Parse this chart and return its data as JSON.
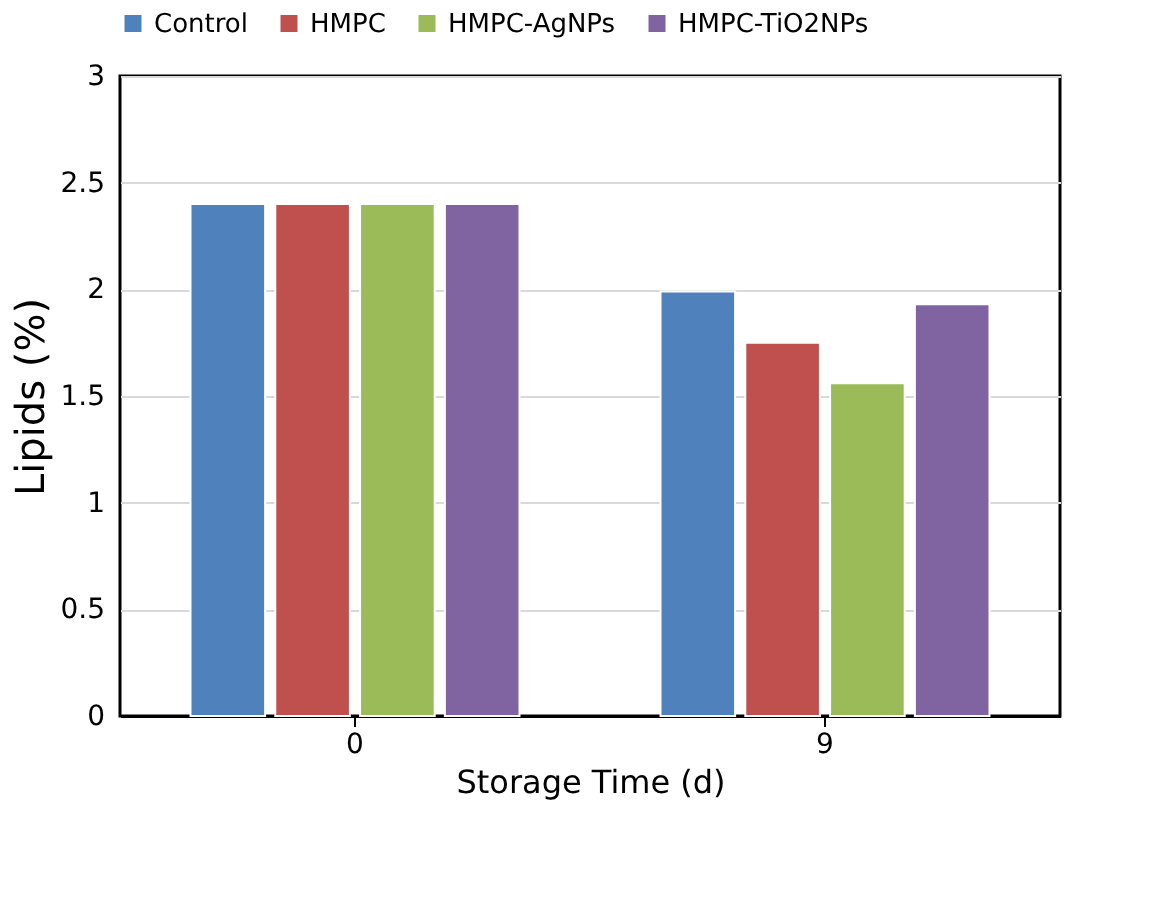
{
  "chart_data": {
    "type": "bar",
    "xlabel": "Storage Time (d)",
    "ylabel": "Lipids (%)",
    "categories": [
      "0",
      "9"
    ],
    "series": [
      {
        "name": "Control",
        "color": "#4f81bd",
        "values": [
          2.4,
          1.99
        ]
      },
      {
        "name": "HMPC",
        "color": "#c0504d",
        "values": [
          2.4,
          1.75
        ]
      },
      {
        "name": "HMPC-AgNPs",
        "color": "#9bbb59",
        "values": [
          2.4,
          1.56
        ]
      },
      {
        "name": "HMPC-TiO2NPs",
        "color": "#8064a2",
        "values": [
          2.4,
          1.93
        ]
      }
    ],
    "ylim": [
      0,
      3
    ],
    "yticks": [
      0,
      0.5,
      1,
      1.5,
      2,
      2.5,
      3
    ],
    "grid": "y",
    "legend": "top"
  }
}
